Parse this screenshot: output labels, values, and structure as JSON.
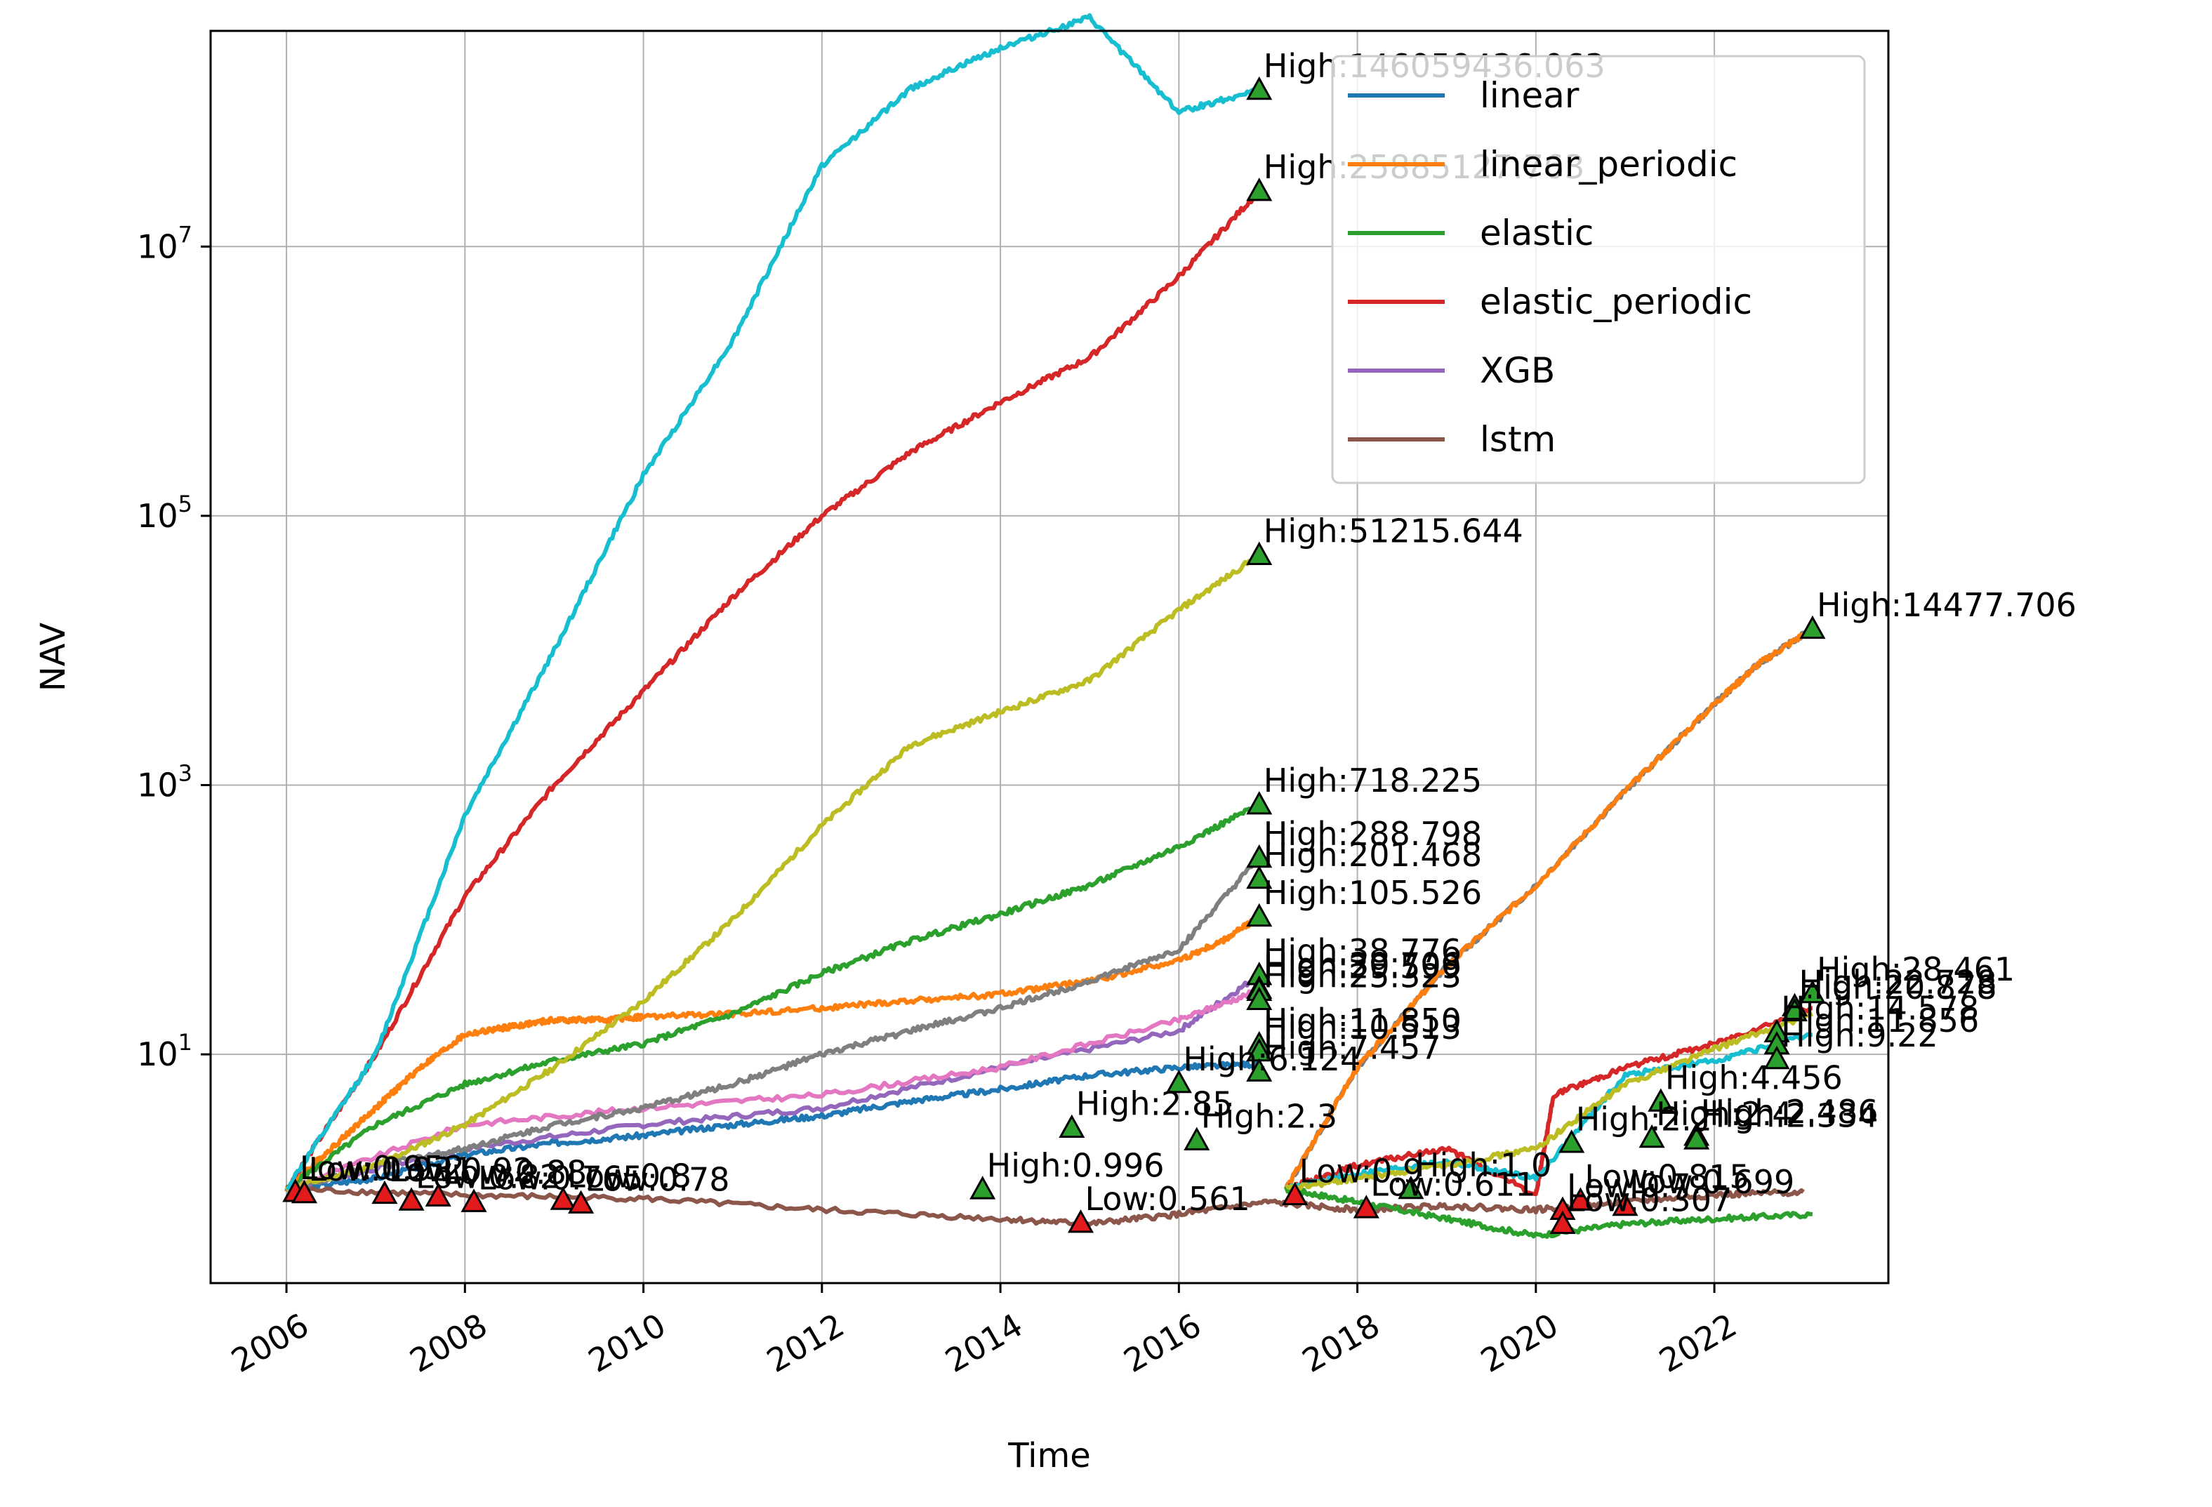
{
  "chart_data": {
    "type": "line",
    "title": "",
    "xlabel": "Time",
    "ylabel": "NAV",
    "yscale": "log",
    "xlim": [
      2005.15,
      2023.95
    ],
    "ylim": [
      0.2,
      400000000
    ],
    "grid": true,
    "legend_position": "upper-right",
    "xticks": [
      {
        "value": 2006,
        "label": "2006"
      },
      {
        "value": 2008,
        "label": "2008"
      },
      {
        "value": 2010,
        "label": "2010"
      },
      {
        "value": 2012,
        "label": "2012"
      },
      {
        "value": 2014,
        "label": "2014"
      },
      {
        "value": 2016,
        "label": "2016"
      },
      {
        "value": 2018,
        "label": "2018"
      },
      {
        "value": 2020,
        "label": "2020"
      },
      {
        "value": 2022,
        "label": "2022"
      }
    ],
    "yticks": [
      {
        "value": 10,
        "base": "10",
        "exp": "1"
      },
      {
        "value": 1000,
        "base": "10",
        "exp": "3"
      },
      {
        "value": 100000,
        "base": "10",
        "exp": "5"
      },
      {
        "value": 10000000,
        "base": "10",
        "exp": "7"
      }
    ],
    "series": [
      {
        "name": "linear",
        "color": "#1f77b4",
        "legend": true,
        "x": [
          2006,
          2007,
          2008,
          2009,
          2010,
          2011,
          2012,
          2013,
          2014,
          2015,
          2016,
          2016.9
        ],
        "y": [
          1,
          1.2,
          1.8,
          2.2,
          2.5,
          3,
          3.5,
          4.5,
          5.5,
          7,
          8,
          8.5
        ]
      },
      {
        "name": "linear_periodic",
        "color": "#ff7f0e",
        "legend": true,
        "x": [
          2006,
          2006.5,
          2007,
          2007.5,
          2008,
          2008.5,
          2009,
          2009.5,
          2010,
          2011,
          2012,
          2013,
          2014,
          2015,
          2016,
          2016.5,
          2016.9
        ],
        "y": [
          1,
          2,
          4,
          8,
          14,
          16,
          18,
          18,
          19,
          20,
          22,
          25,
          28,
          35,
          50,
          70,
          105.526
        ]
      },
      {
        "name": "elastic",
        "color": "#2ca02c",
        "legend": true,
        "x": [
          2006,
          2007,
          2008,
          2009,
          2010,
          2011,
          2012,
          2013,
          2014,
          2015,
          2016,
          2016.9
        ],
        "y": [
          1,
          3,
          6,
          9,
          12,
          20,
          40,
          70,
          110,
          180,
          350,
          718.225
        ]
      },
      {
        "name": "elastic_periodic",
        "color": "#d62728",
        "legend": true,
        "x": [
          2006,
          2007,
          2008,
          2009,
          2010,
          2011,
          2012,
          2013,
          2014,
          2015,
          2016,
          2016.9
        ],
        "y": [
          1,
          10,
          150,
          1000,
          5000,
          25000,
          100000,
          300000,
          700000,
          1500000,
          6000000,
          25885127
        ]
      },
      {
        "name": "XGB",
        "color": "#9467bd",
        "legend": true,
        "x": [
          2006,
          2008,
          2010,
          2012,
          2014,
          2016,
          2016.9
        ],
        "y": [
          1,
          2,
          3,
          4,
          8,
          15,
          38.776
        ]
      },
      {
        "name": "lstm",
        "color": "#8c564b",
        "legend": true,
        "x": [
          2006,
          2008,
          2010,
          2012,
          2014,
          2015,
          2016,
          2017,
          2018,
          2019,
          2020,
          2021,
          2022,
          2023
        ],
        "y": [
          1,
          0.9,
          0.85,
          0.7,
          0.6,
          0.55,
          0.65,
          0.8,
          0.7,
          0.75,
          0.7,
          0.8,
          0.9,
          0.95
        ]
      },
      {
        "name": "",
        "color": "#e377c2",
        "legend": false,
        "x": [
          2006,
          2008,
          2010,
          2012,
          2014,
          2016,
          2016.9
        ],
        "y": [
          1,
          3,
          4,
          5,
          8,
          18,
          30
        ]
      },
      {
        "name": "",
        "color": "#7f7f7f",
        "legend": false,
        "x": [
          2006,
          2007,
          2008,
          2009,
          2010,
          2011,
          2012,
          2013,
          2014,
          2015,
          2016,
          2016.9
        ],
        "y": [
          1,
          1.5,
          2,
          3,
          4,
          6,
          10,
          15,
          22,
          35,
          60,
          288.798
        ]
      },
      {
        "name": "",
        "color": "#bcbd22",
        "legend": false,
        "x": [
          2006,
          2007,
          2008,
          2009,
          2010,
          2011,
          2012,
          2013,
          2014,
          2015,
          2016,
          2016.9
        ],
        "y": [
          1,
          1.5,
          3,
          8,
          25,
          100,
          500,
          2000,
          3500,
          6000,
          20000,
          51215.644
        ]
      },
      {
        "name": "",
        "color": "#17becf",
        "legend": false,
        "x": [
          2006,
          2007,
          2008,
          2009,
          2010,
          2011,
          2012,
          2013,
          2014,
          2015,
          2016,
          2016.9
        ],
        "y": [
          1,
          10,
          600,
          10000,
          200000,
          2000000,
          40000000,
          150000000,
          300000000,
          500000000,
          100000000,
          146059436.063
        ]
      },
      {
        "name": "",
        "color": "#7f7f7f",
        "legend": false,
        "x": [
          2017.2,
          2018,
          2019,
          2020,
          2021,
          2022,
          2022.5,
          2023.1
        ],
        "y": [
          1,
          8,
          45,
          180,
          900,
          4000,
          8000,
          14477.706
        ]
      },
      {
        "name": "",
        "color": "#ff7f0e",
        "legend": false,
        "x": [
          2017.2,
          2018,
          2019,
          2020,
          2021,
          2022,
          2022.5,
          2023.1
        ],
        "y": [
          1,
          8,
          45,
          180,
          900,
          4000,
          8000,
          14477.706
        ]
      },
      {
        "name": "",
        "color": "#d62728",
        "legend": false,
        "x": [
          2017.2,
          2018,
          2019,
          2020,
          2020.2,
          2021,
          2022,
          2023.1
        ],
        "y": [
          1,
          1.5,
          2,
          0.9,
          5,
          8,
          12,
          22
        ]
      },
      {
        "name": "",
        "color": "#17becf",
        "legend": false,
        "x": [
          2017.2,
          2018,
          2019,
          2020,
          2021,
          2022,
          2023.1
        ],
        "y": [
          1,
          1.3,
          1.6,
          1.2,
          7,
          9,
          14
        ]
      },
      {
        "name": "",
        "color": "#2ca02c",
        "legend": false,
        "x": [
          2017.2,
          2018,
          2019,
          2020,
          2021,
          2022,
          2023.1
        ],
        "y": [
          1,
          0.8,
          0.6,
          0.45,
          0.55,
          0.6,
          0.65
        ]
      },
      {
        "name": "",
        "color": "#bcbd22",
        "legend": false,
        "x": [
          2017.2,
          2018,
          2019,
          2020,
          2021,
          2022,
          2023.1
        ],
        "y": [
          1,
          1.2,
          1.5,
          2,
          6,
          11,
          20
        ]
      }
    ],
    "annotations": [
      {
        "kind": "high",
        "x": 2016.9,
        "y": 146059436.063,
        "text": "High:146059436.063"
      },
      {
        "kind": "high",
        "x": 2016.9,
        "y": 25885127,
        "text": "High:25885127.763"
      },
      {
        "kind": "high",
        "x": 2016.9,
        "y": 51215.644,
        "text": "High:51215.644"
      },
      {
        "kind": "high",
        "x": 2023.1,
        "y": 14477.706,
        "text": "High:14477.706"
      },
      {
        "kind": "high",
        "x": 2016.9,
        "y": 718.225,
        "text": "High:718.225"
      },
      {
        "kind": "high",
        "x": 2016.9,
        "y": 288.798,
        "text": "High:288.798"
      },
      {
        "kind": "high",
        "x": 2016.9,
        "y": 201.468,
        "text": "High:201.468"
      },
      {
        "kind": "high",
        "x": 2016.9,
        "y": 105.526,
        "text": "High:105.526"
      },
      {
        "kind": "high",
        "x": 2016.9,
        "y": 38.776,
        "text": "High:38.776"
      },
      {
        "kind": "high",
        "x": 2016.9,
        "y": 30.706,
        "text": "High:30.706"
      },
      {
        "kind": "high",
        "x": 2016.9,
        "y": 29.599,
        "text": "High:29.599"
      },
      {
        "kind": "high",
        "x": 2016.9,
        "y": 25.323,
        "text": "High:25.323"
      },
      {
        "kind": "high",
        "x": 2016.9,
        "y": 11.85,
        "text": "High:11.850"
      },
      {
        "kind": "high",
        "x": 2016.9,
        "y": 10.513,
        "text": "High:10.513"
      },
      {
        "kind": "high",
        "x": 2016.9,
        "y": 7.457,
        "text": "High:7.457"
      },
      {
        "kind": "high",
        "x": 2016.0,
        "y": 6.124,
        "text": "High:6.124"
      },
      {
        "kind": "high",
        "x": 2014.8,
        "y": 2.85,
        "text": "High:2.85"
      },
      {
        "kind": "high",
        "x": 2013.8,
        "y": 0.996,
        "text": "High:0.996"
      },
      {
        "kind": "high",
        "x": 2016.2,
        "y": 2.3,
        "text": "High:2.3"
      },
      {
        "kind": "high",
        "x": 2023.1,
        "y": 28.461,
        "text": "High:28.461"
      },
      {
        "kind": "high",
        "x": 2022.9,
        "y": 22.728,
        "text": "High:22.728"
      },
      {
        "kind": "high",
        "x": 2022.9,
        "y": 20.878,
        "text": "High:20.878"
      },
      {
        "kind": "high",
        "x": 2022.7,
        "y": 14.578,
        "text": "High:14.578"
      },
      {
        "kind": "high",
        "x": 2022.7,
        "y": 11.856,
        "text": "High:11.856"
      },
      {
        "kind": "high",
        "x": 2022.7,
        "y": 9.22,
        "text": "High:9.22"
      },
      {
        "kind": "high",
        "x": 2021.4,
        "y": 4.456,
        "text": "High:4.456"
      },
      {
        "kind": "high",
        "x": 2021.8,
        "y": 2.486,
        "text": "High:2.486"
      },
      {
        "kind": "high",
        "x": 2021.8,
        "y": 2.334,
        "text": "High:2.334"
      },
      {
        "kind": "high",
        "x": 2020.4,
        "y": 2.2,
        "text": "High:2.2"
      },
      {
        "kind": "high",
        "x": 2021.3,
        "y": 2.4,
        "text": "High:2.4"
      },
      {
        "kind": "high",
        "x": 2018.6,
        "y": 1.0,
        "text": "High:1.0"
      },
      {
        "kind": "low",
        "x": 2006.1,
        "y": 0.95,
        "text": "Low:0.952"
      },
      {
        "kind": "low",
        "x": 2006.2,
        "y": 0.93,
        "text": "Low:0.931"
      },
      {
        "kind": "low",
        "x": 2007.1,
        "y": 0.92,
        "text": "Low:0.92"
      },
      {
        "kind": "low",
        "x": 2007.4,
        "y": 0.82,
        "text": "Low:0.82"
      },
      {
        "kind": "low",
        "x": 2007.7,
        "y": 0.88,
        "text": "Low:0.88"
      },
      {
        "kind": "low",
        "x": 2008.1,
        "y": 0.8,
        "text": "Low:0.765"
      },
      {
        "kind": "low",
        "x": 2009.1,
        "y": 0.83,
        "text": "Low:0.8"
      },
      {
        "kind": "low",
        "x": 2009.3,
        "y": 0.78,
        "text": "Low:0.78"
      },
      {
        "kind": "low",
        "x": 2014.9,
        "y": 0.561,
        "text": "Low:0.561"
      },
      {
        "kind": "low",
        "x": 2017.3,
        "y": 0.9,
        "text": "Low:0.9"
      },
      {
        "kind": "low",
        "x": 2018.1,
        "y": 0.72,
        "text": "Low:0.611"
      },
      {
        "kind": "low",
        "x": 2020.3,
        "y": 0.7,
        "text": "Low:0.7"
      },
      {
        "kind": "low",
        "x": 2020.3,
        "y": 0.55,
        "text": "Low:0.307"
      },
      {
        "kind": "low",
        "x": 2020.5,
        "y": 0.82,
        "text": "Low:0.815"
      },
      {
        "kind": "low",
        "x": 2021.0,
        "y": 0.75,
        "text": "Low:0.699"
      }
    ]
  }
}
